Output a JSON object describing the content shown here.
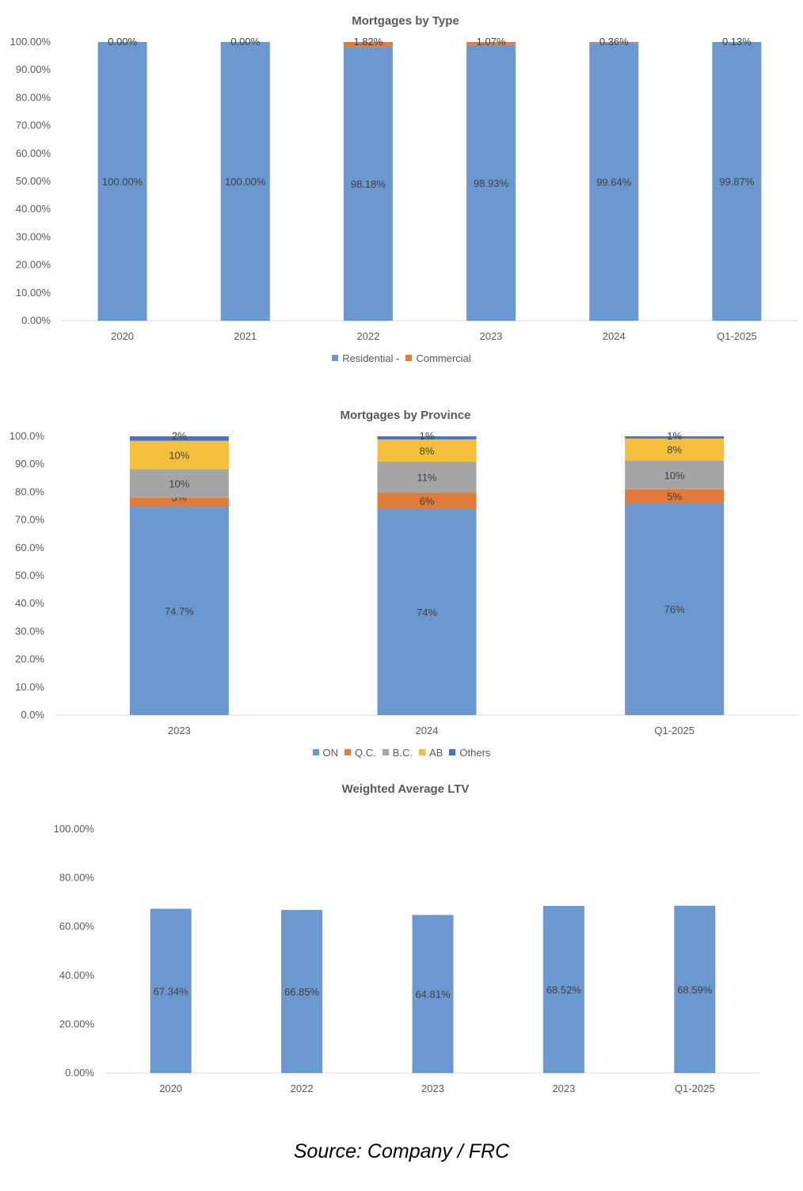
{
  "chart_data": [
    {
      "type": "bar",
      "stacked": true,
      "title": "Mortgages by Type",
      "categories": [
        "2020",
        "2021",
        "2022",
        "2023",
        "2024",
        "Q1-2025"
      ],
      "series": [
        {
          "name": "Residential -",
          "color": "#6A98CF",
          "values": [
            100.0,
            100.0,
            98.18,
            98.93,
            99.64,
            99.87
          ],
          "labels": [
            "100.00%",
            "100.00%",
            "98.18%",
            "98.93%",
            "99.64%",
            "99.87%"
          ]
        },
        {
          "name": "Commercial",
          "color": "#E07B39",
          "values": [
            0.0,
            0.0,
            1.82,
            1.07,
            0.36,
            0.13
          ],
          "labels": [
            "0.00%",
            "0.00%",
            "1.82%",
            "1.07%",
            "0.36%",
            "0.13%"
          ]
        }
      ],
      "yticks": [
        "0.00%",
        "10.00%",
        "20.00%",
        "30.00%",
        "40.00%",
        "50.00%",
        "60.00%",
        "70.00%",
        "80.00%",
        "90.00%",
        "100.00%"
      ],
      "ylim": [
        0,
        100
      ],
      "legend": "bottom",
      "grid": false
    },
    {
      "type": "bar",
      "stacked": true,
      "title": "Mortgages by Province",
      "categories": [
        "2023",
        "2024",
        "Q1-2025"
      ],
      "series": [
        {
          "name": "ON",
          "color": "#6A98CF",
          "values": [
            74.7,
            74,
            76
          ],
          "labels": [
            "74.7%",
            "74%",
            "76%"
          ]
        },
        {
          "name": "Q.C.",
          "color": "#E07B39",
          "values": [
            3.3,
            5.7,
            5.0
          ],
          "labels": [
            "3%",
            "6%",
            "5%"
          ]
        },
        {
          "name": "B.C.",
          "color": "#A5A5A5",
          "values": [
            10.2,
            11.2,
            10.3
          ],
          "labels": [
            "10%",
            "11%",
            "10%"
          ]
        },
        {
          "name": "AB",
          "color": "#F5BF3E",
          "values": [
            10.2,
            8.0,
            7.9
          ],
          "labels": [
            "10%",
            "8%",
            "8%"
          ]
        },
        {
          "name": "Others",
          "color": "#4472C4",
          "values": [
            1.6,
            1.1,
            0.8
          ],
          "labels": [
            "2%",
            "1%",
            "1%"
          ]
        }
      ],
      "yticks": [
        "0.0%",
        "10.0%",
        "20.0%",
        "30.0%",
        "40.0%",
        "50.0%",
        "60.0%",
        "70.0%",
        "80.0%",
        "90.0%",
        "100.0%"
      ],
      "ylim": [
        0,
        100
      ],
      "legend": "bottom",
      "grid": false
    },
    {
      "type": "bar",
      "title": "Weighted Average LTV",
      "categories": [
        "2020",
        "2022",
        "2023",
        "2023",
        "Q1-2025"
      ],
      "series": [
        {
          "color": "#6A98CF",
          "values": [
            67.34,
            66.85,
            64.81,
            68.52,
            68.59
          ],
          "labels": [
            "67.34%",
            "66.85%",
            "64.81%",
            "68.52%",
            "68.59%"
          ]
        }
      ],
      "yticks": [
        "0.00%",
        "20.00%",
        "40.00%",
        "60.00%",
        "80.00%",
        "100.00%"
      ],
      "ylim": [
        0,
        100
      ],
      "legend": "none",
      "grid": false
    }
  ],
  "source": "Source: Company / FRC"
}
